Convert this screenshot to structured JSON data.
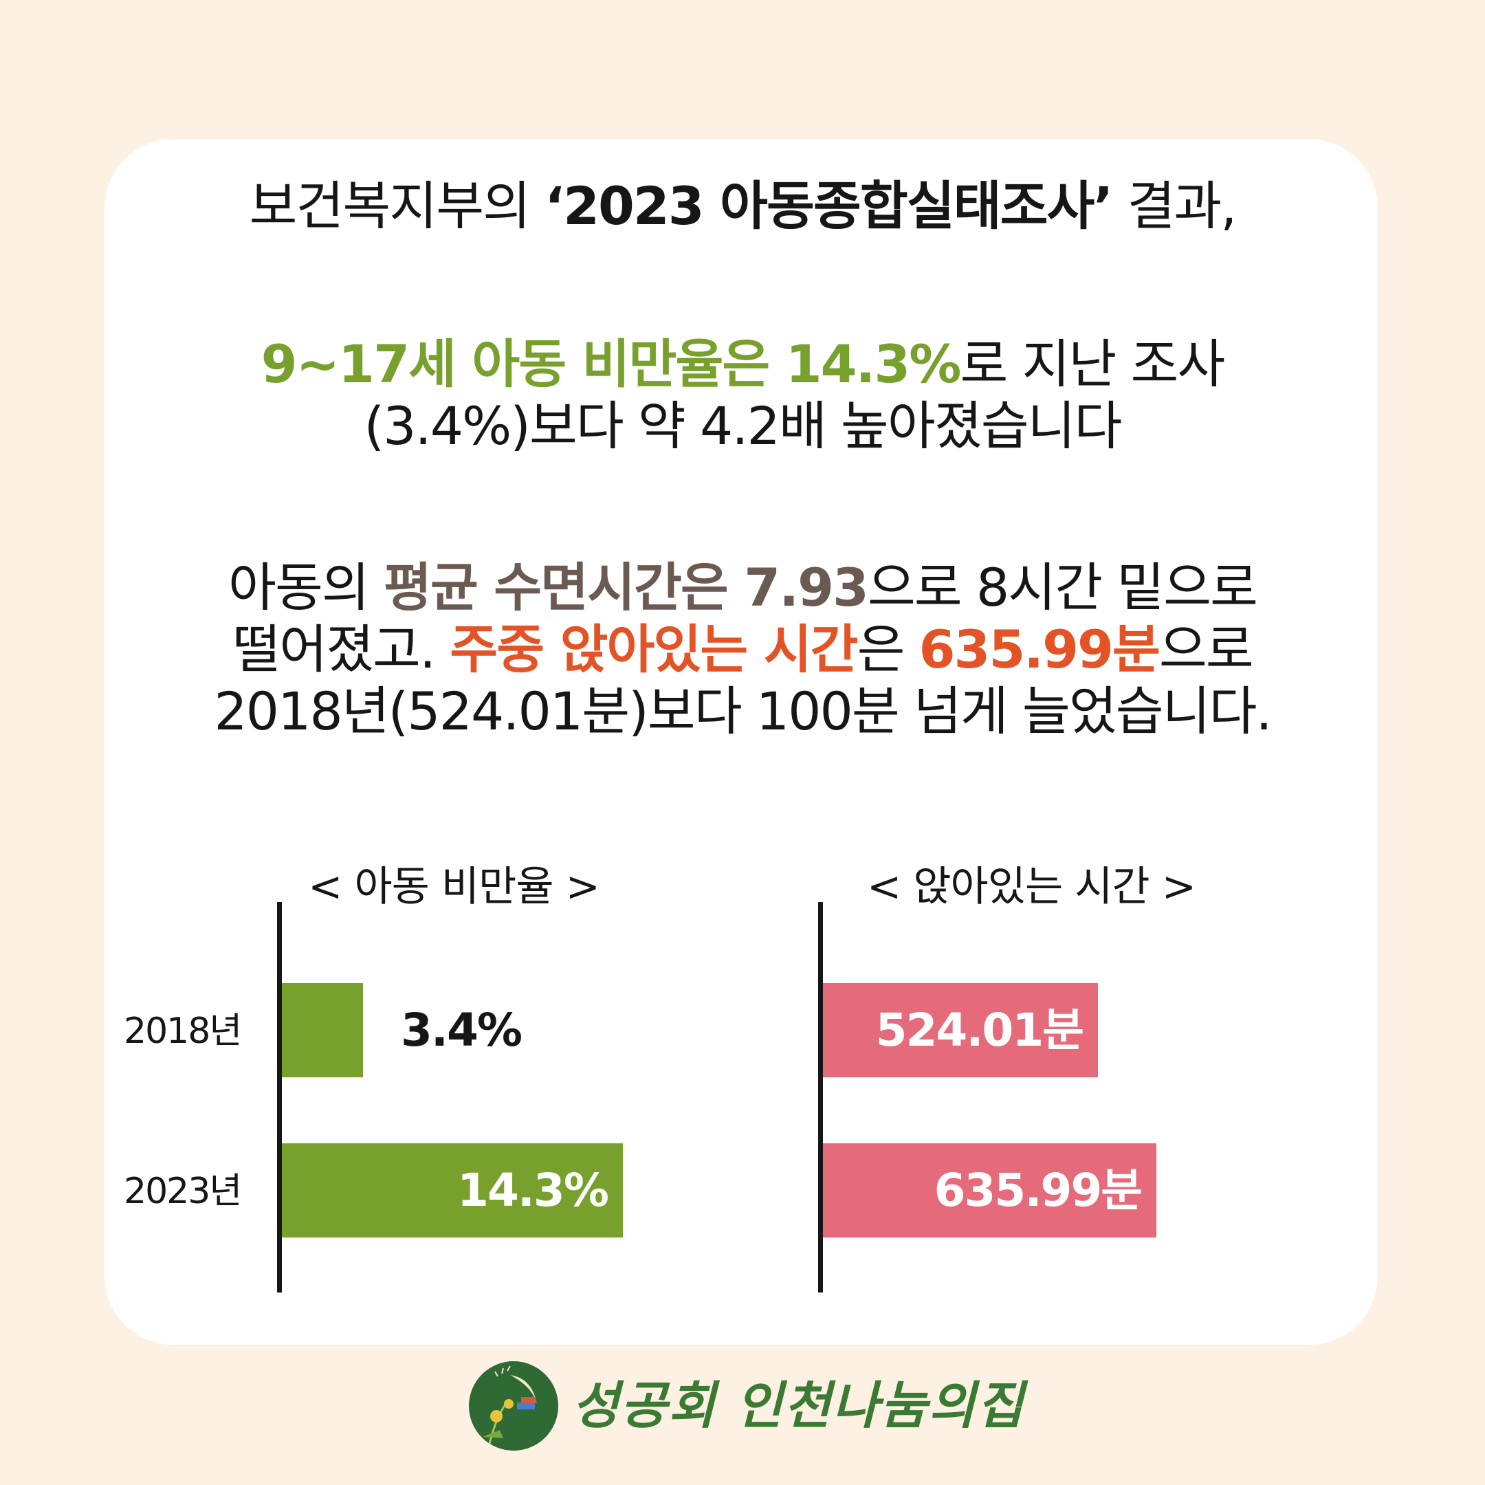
{
  "intro": {
    "line1_pre": "보건복지부의 ",
    "line1_bold": "‘2023 아동종합실태조사’",
    "line1_post": " 결과,"
  },
  "obesity_text": {
    "highlight": "9~17세 아동 비만율은 14.3%",
    "line1_post": "로 지난 조사",
    "line2": "(3.4%)보다 약 4.2배 높아졌습니다"
  },
  "sleep_text": {
    "line1_pre": "아동의 ",
    "line1_highlight": "평균 수면시간은 7.93",
    "line1_post": "으로 8시간 밑으로",
    "line2_pre": "떨어졌고. ",
    "line2_highlight1": "주중 앉아있는 시간",
    "line2_mid": "은 ",
    "line2_highlight2": "635.99분",
    "line2_post": "으로",
    "line3": "2018년(524.01분)보다 100분 넘게 늘었습니다."
  },
  "chart_data": [
    {
      "type": "bar",
      "orientation": "horizontal",
      "title": "< 아동 비만율 >",
      "categories": [
        "2018년",
        "2023년"
      ],
      "values": [
        3.4,
        14.3
      ],
      "value_labels": [
        "3.4%",
        "14.3%"
      ],
      "unit": "%",
      "xlim": [
        0,
        15.9
      ],
      "color": "#77a02c"
    },
    {
      "type": "bar",
      "orientation": "horizontal",
      "title": "< 앉아있는 시간 >",
      "categories": [
        "2018년",
        "2023년"
      ],
      "values": [
        524.01,
        635.99
      ],
      "value_labels": [
        "524.01분",
        "635.99분"
      ],
      "unit": "분",
      "xlim": [
        0,
        735
      ],
      "color": "#e56a7a"
    }
  ],
  "logo": {
    "text": "성공회 인천나눔의집"
  },
  "colors": {
    "background": "#fdf1e4",
    "card": "#ffffff",
    "green_accent": "#77a02c",
    "brown_accent": "#6b5a51",
    "orange_accent": "#e45325",
    "pink_bar": "#e56a7a"
  }
}
